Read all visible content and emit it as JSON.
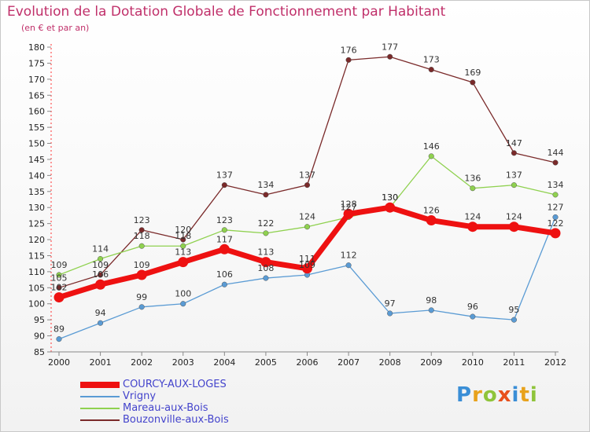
{
  "title": "Evolution de la Dotation Globale de Fonctionnement par Habitant",
  "subtitle": "(en € et par an)",
  "logo": {
    "letters": [
      {
        "ch": "P",
        "color": "#3a8ed6"
      },
      {
        "ch": "r",
        "color": "#e8a21c"
      },
      {
        "ch": "o",
        "color": "#8fc43a"
      },
      {
        "ch": "x",
        "color": "#e8501c"
      },
      {
        "ch": "i",
        "color": "#3a8ed6"
      },
      {
        "ch": "t",
        "color": "#e8a21c"
      },
      {
        "ch": "i",
        "color": "#8fc43a"
      }
    ]
  },
  "chart_data": {
    "type": "line",
    "title": "Evolution de la Dotation Globale de Fonctionnement par Habitant",
    "subtitle": "(en € et par an)",
    "x": [
      "2000",
      "2001",
      "2002",
      "2003",
      "2004",
      "2005",
      "2006",
      "2007",
      "2008",
      "2009",
      "2010",
      "2011",
      "2012"
    ],
    "ylim": [
      85,
      180
    ],
    "yticks": [
      85,
      90,
      95,
      100,
      105,
      110,
      115,
      120,
      125,
      130,
      135,
      140,
      145,
      150,
      155,
      160,
      165,
      170,
      175,
      180
    ],
    "grid": false,
    "legend_position": "bottom-left",
    "series": [
      {
        "name": "COURCY-AUX-LOGES",
        "color": "#ee1111",
        "bold": true,
        "values": [
          102,
          106,
          109,
          113,
          117,
          113,
          111,
          128,
          130,
          126,
          124,
          124,
          122
        ],
        "labels": [
          "102",
          "106",
          "109",
          "113",
          "117",
          "113",
          "111",
          "128",
          "130",
          "126",
          "124",
          "124",
          "122"
        ]
      },
      {
        "name": "Vrigny",
        "color": "#5a9bd4",
        "bold": false,
        "values": [
          89,
          94,
          99,
          100,
          106,
          108,
          109,
          112,
          97,
          98,
          96,
          95,
          127
        ],
        "labels": [
          "89",
          "94",
          "99",
          "100",
          "106",
          "108",
          "109",
          "112",
          "97",
          "98",
          "96",
          "95",
          "127"
        ]
      },
      {
        "name": "Mareau-aux-Bois",
        "color": "#8fd14f",
        "bold": false,
        "values": [
          109,
          114,
          118,
          118,
          123,
          122,
          124,
          127,
          130,
          146,
          136,
          137,
          134
        ],
        "labels": [
          "109",
          "114",
          "118",
          "118",
          "123",
          "122",
          "124",
          "127",
          "130",
          "146",
          "136",
          "137",
          "134"
        ]
      },
      {
        "name": "Bouzonville-aux-Bois",
        "color": "#7a2a2a",
        "bold": false,
        "values": [
          105,
          109,
          123,
          120,
          137,
          134,
          137,
          176,
          177,
          173,
          169,
          147,
          144
        ],
        "labels": [
          "105",
          "109",
          "123",
          "120",
          "137",
          "134",
          "137",
          "176",
          "177",
          "173",
          "169",
          "147",
          "144"
        ]
      }
    ]
  }
}
